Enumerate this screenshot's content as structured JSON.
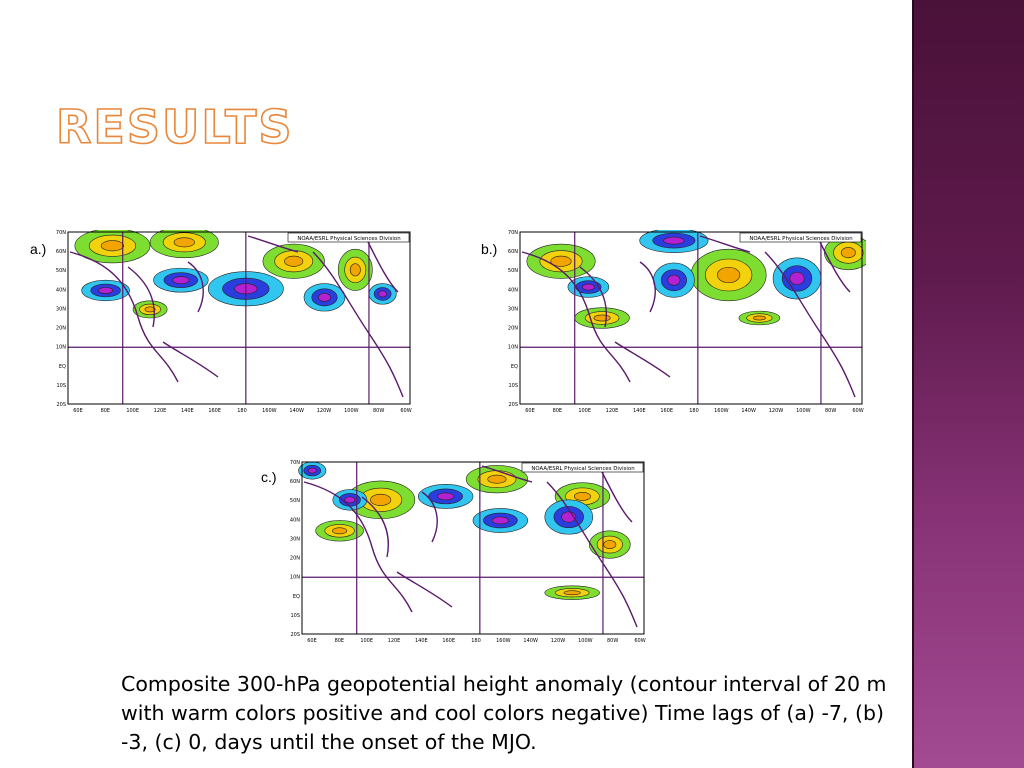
{
  "slide": {
    "title": "RESULTS",
    "caption": "Composite 300-hPa geopotential height anomaly (contour interval of 20 m with warm colors positive and cool colors negative) Time lags of (a) -7, (b) -3, (c) 0, days until the onset of the MJO.",
    "sidebar_color": "#7a2a68"
  },
  "panels": [
    {
      "label": "a.)",
      "credit": "NOAA/ESRL Physical Sciences Division"
    },
    {
      "label": "b.)",
      "credit": "NOAA/ESRL Physical Sciences Division"
    },
    {
      "label": "c.)",
      "credit": "NOAA/ESRL Physical Sciences Division"
    }
  ],
  "map_axes": {
    "lat_labels": [
      "70N",
      "60N",
      "50N",
      "40N",
      "30N",
      "20N",
      "10N",
      "EQ",
      "10S",
      "20S"
    ],
    "lon_labels": [
      "60E",
      "80E",
      "100E",
      "120E",
      "140E",
      "160E",
      "180",
      "160W",
      "140W",
      "120W",
      "100W",
      "80W",
      "60W"
    ]
  }
}
